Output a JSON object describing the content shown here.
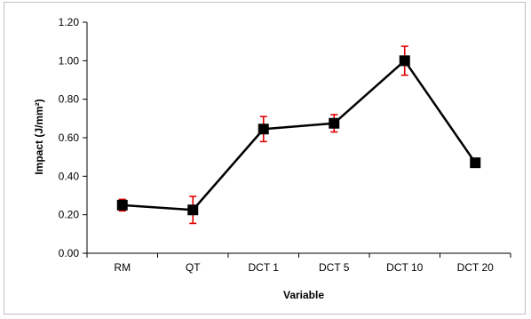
{
  "chart_data": {
    "type": "line",
    "title": "",
    "xlabel": "Variable",
    "ylabel": "Impact (J/mm²)",
    "categories": [
      "RM",
      "QT",
      "DCT 1",
      "DCT 5",
      "DCT 10",
      "DCT 20"
    ],
    "series": [
      {
        "values": [
          0.25,
          0.225,
          0.645,
          0.675,
          1.0,
          0.47
        ],
        "errors": [
          0.03,
          0.07,
          0.065,
          0.045,
          0.075,
          0.0
        ]
      }
    ],
    "ylim": [
      0.0,
      1.2
    ],
    "yticks": [
      "0.00",
      "0.20",
      "0.40",
      "0.60",
      "0.80",
      "1.00",
      "1.20"
    ],
    "grid": false,
    "legend": "none",
    "colors": {
      "line": "#000000",
      "marker": "#000000",
      "error_bar": "#e00000",
      "frame": "#bfbfbf"
    }
  }
}
